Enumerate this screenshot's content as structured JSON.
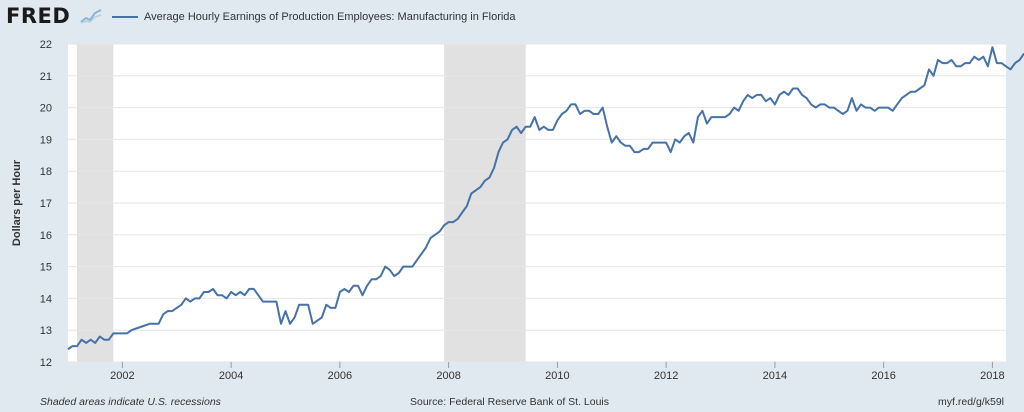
{
  "header": {
    "logo_text": "FRED",
    "logo_graph_icon": "line-graph-icon"
  },
  "chart_data": {
    "type": "line",
    "title": "",
    "xlabel": "",
    "ylabel": "Dollars per Hour",
    "xlim": [
      "2001-01",
      "2018-04"
    ],
    "ylim": [
      12,
      22
    ],
    "y_ticks": [
      12,
      13,
      14,
      15,
      16,
      17,
      18,
      19,
      20,
      21,
      22
    ],
    "x_ticks": [
      "2002",
      "2004",
      "2006",
      "2008",
      "2010",
      "2012",
      "2014",
      "2016",
      "2018"
    ],
    "grid": true,
    "legend": "top-left",
    "colors": {
      "line": "#4572a7",
      "recession": "#e1e1e1",
      "background": "#e1e9f0",
      "plot": "#ffffff"
    },
    "recessions": [
      {
        "start": "2001-03",
        "end": "2001-11"
      },
      {
        "start": "2007-12",
        "end": "2009-06"
      }
    ],
    "series": [
      {
        "name": "Average Hourly Earnings of Production Employees: Manufacturing in Florida",
        "points": [
          [
            "2001-01",
            12.4
          ],
          [
            "2001-02",
            12.5
          ],
          [
            "2001-03",
            12.5
          ],
          [
            "2001-04",
            12.7
          ],
          [
            "2001-05",
            12.6
          ],
          [
            "2001-06",
            12.7
          ],
          [
            "2001-07",
            12.6
          ],
          [
            "2001-08",
            12.8
          ],
          [
            "2001-09",
            12.7
          ],
          [
            "2001-10",
            12.7
          ],
          [
            "2001-11",
            12.9
          ],
          [
            "2001-12",
            12.9
          ],
          [
            "2002-02",
            12.9
          ],
          [
            "2002-03",
            13.0
          ],
          [
            "2002-05",
            13.1
          ],
          [
            "2002-07",
            13.2
          ],
          [
            "2002-09",
            13.2
          ],
          [
            "2002-10",
            13.5
          ],
          [
            "2002-11",
            13.6
          ],
          [
            "2002-12",
            13.6
          ],
          [
            "2003-02",
            13.8
          ],
          [
            "2003-03",
            14.0
          ],
          [
            "2003-04",
            13.9
          ],
          [
            "2003-05",
            14.0
          ],
          [
            "2003-06",
            14.0
          ],
          [
            "2003-07",
            14.2
          ],
          [
            "2003-08",
            14.2
          ],
          [
            "2003-09",
            14.3
          ],
          [
            "2003-10",
            14.1
          ],
          [
            "2003-11",
            14.1
          ],
          [
            "2003-12",
            14.0
          ],
          [
            "2004-01",
            14.2
          ],
          [
            "2004-02",
            14.1
          ],
          [
            "2004-03",
            14.2
          ],
          [
            "2004-04",
            14.1
          ],
          [
            "2004-05",
            14.3
          ],
          [
            "2004-06",
            14.3
          ],
          [
            "2004-07",
            14.1
          ],
          [
            "2004-08",
            13.9
          ],
          [
            "2004-09",
            13.9
          ],
          [
            "2004-10",
            13.9
          ],
          [
            "2004-11",
            13.9
          ],
          [
            "2004-12",
            13.2
          ],
          [
            "2005-01",
            13.6
          ],
          [
            "2005-02",
            13.2
          ],
          [
            "2005-03",
            13.4
          ],
          [
            "2005-04",
            13.8
          ],
          [
            "2005-05",
            13.8
          ],
          [
            "2005-06",
            13.8
          ],
          [
            "2005-07",
            13.2
          ],
          [
            "2005-08",
            13.3
          ],
          [
            "2005-09",
            13.4
          ],
          [
            "2005-10",
            13.8
          ],
          [
            "2005-11",
            13.7
          ],
          [
            "2005-12",
            13.7
          ],
          [
            "2006-01",
            14.2
          ],
          [
            "2006-02",
            14.3
          ],
          [
            "2006-03",
            14.2
          ],
          [
            "2006-04",
            14.4
          ],
          [
            "2006-05",
            14.4
          ],
          [
            "2006-06",
            14.1
          ],
          [
            "2006-07",
            14.4
          ],
          [
            "2006-08",
            14.6
          ],
          [
            "2006-09",
            14.6
          ],
          [
            "2006-10",
            14.7
          ],
          [
            "2006-11",
            15.0
          ],
          [
            "2006-12",
            14.9
          ],
          [
            "2007-01",
            14.7
          ],
          [
            "2007-02",
            14.8
          ],
          [
            "2007-03",
            15.0
          ],
          [
            "2007-04",
            15.0
          ],
          [
            "2007-05",
            15.0
          ],
          [
            "2007-06",
            15.2
          ],
          [
            "2007-07",
            15.4
          ],
          [
            "2007-08",
            15.6
          ],
          [
            "2007-09",
            15.9
          ],
          [
            "2007-10",
            16.0
          ],
          [
            "2007-11",
            16.1
          ],
          [
            "2007-12",
            16.3
          ],
          [
            "2008-01",
            16.4
          ],
          [
            "2008-02",
            16.4
          ],
          [
            "2008-03",
            16.5
          ],
          [
            "2008-04",
            16.7
          ],
          [
            "2008-05",
            16.9
          ],
          [
            "2008-06",
            17.3
          ],
          [
            "2008-07",
            17.4
          ],
          [
            "2008-08",
            17.5
          ],
          [
            "2008-09",
            17.7
          ],
          [
            "2008-10",
            17.8
          ],
          [
            "2008-11",
            18.1
          ],
          [
            "2008-12",
            18.6
          ],
          [
            "2009-01",
            18.9
          ],
          [
            "2009-02",
            19.0
          ],
          [
            "2009-03",
            19.3
          ],
          [
            "2009-04",
            19.4
          ],
          [
            "2009-05",
            19.2
          ],
          [
            "2009-06",
            19.4
          ],
          [
            "2009-07",
            19.4
          ],
          [
            "2009-08",
            19.7
          ],
          [
            "2009-09",
            19.3
          ],
          [
            "2009-10",
            19.4
          ],
          [
            "2009-11",
            19.3
          ],
          [
            "2009-12",
            19.3
          ],
          [
            "2010-01",
            19.6
          ],
          [
            "2010-02",
            19.8
          ],
          [
            "2010-03",
            19.9
          ],
          [
            "2010-04",
            20.1
          ],
          [
            "2010-05",
            20.1
          ],
          [
            "2010-06",
            19.8
          ],
          [
            "2010-07",
            19.9
          ],
          [
            "2010-08",
            19.9
          ],
          [
            "2010-09",
            19.8
          ],
          [
            "2010-10",
            19.8
          ],
          [
            "2010-11",
            20.0
          ],
          [
            "2010-12",
            19.4
          ],
          [
            "2011-01",
            18.9
          ],
          [
            "2011-02",
            19.1
          ],
          [
            "2011-03",
            18.9
          ],
          [
            "2011-04",
            18.8
          ],
          [
            "2011-05",
            18.8
          ],
          [
            "2011-06",
            18.6
          ],
          [
            "2011-07",
            18.6
          ],
          [
            "2011-08",
            18.7
          ],
          [
            "2011-09",
            18.7
          ],
          [
            "2011-10",
            18.9
          ],
          [
            "2011-11",
            18.9
          ],
          [
            "2011-12",
            18.9
          ],
          [
            "2012-01",
            18.9
          ],
          [
            "2012-02",
            18.6
          ],
          [
            "2012-03",
            19.0
          ],
          [
            "2012-04",
            18.9
          ],
          [
            "2012-05",
            19.1
          ],
          [
            "2012-06",
            19.2
          ],
          [
            "2012-07",
            18.9
          ],
          [
            "2012-08",
            19.7
          ],
          [
            "2012-09",
            19.9
          ],
          [
            "2012-10",
            19.5
          ],
          [
            "2012-11",
            19.7
          ],
          [
            "2012-12",
            19.7
          ],
          [
            "2013-01",
            19.7
          ],
          [
            "2013-02",
            19.7
          ],
          [
            "2013-03",
            19.8
          ],
          [
            "2013-04",
            20.0
          ],
          [
            "2013-05",
            19.9
          ],
          [
            "2013-06",
            20.2
          ],
          [
            "2013-07",
            20.4
          ],
          [
            "2013-08",
            20.3
          ],
          [
            "2013-09",
            20.4
          ],
          [
            "2013-10",
            20.4
          ],
          [
            "2013-11",
            20.2
          ],
          [
            "2013-12",
            20.3
          ],
          [
            "2014-01",
            20.1
          ],
          [
            "2014-02",
            20.4
          ],
          [
            "2014-03",
            20.5
          ],
          [
            "2014-04",
            20.4
          ],
          [
            "2014-05",
            20.6
          ],
          [
            "2014-06",
            20.6
          ],
          [
            "2014-07",
            20.4
          ],
          [
            "2014-08",
            20.3
          ],
          [
            "2014-09",
            20.1
          ],
          [
            "2014-10",
            20.0
          ],
          [
            "2014-11",
            20.1
          ],
          [
            "2014-12",
            20.1
          ],
          [
            "2015-01",
            20.0
          ],
          [
            "2015-02",
            20.0
          ],
          [
            "2015-03",
            19.9
          ],
          [
            "2015-04",
            19.8
          ],
          [
            "2015-05",
            19.9
          ],
          [
            "2015-06",
            20.3
          ],
          [
            "2015-07",
            19.9
          ],
          [
            "2015-08",
            20.1
          ],
          [
            "2015-09",
            20.0
          ],
          [
            "2015-10",
            20.0
          ],
          [
            "2015-11",
            19.9
          ],
          [
            "2015-12",
            20.0
          ],
          [
            "2016-01",
            20.0
          ],
          [
            "2016-02",
            20.0
          ],
          [
            "2016-03",
            19.9
          ],
          [
            "2016-04",
            20.1
          ],
          [
            "2016-05",
            20.3
          ],
          [
            "2016-06",
            20.4
          ],
          [
            "2016-07",
            20.5
          ],
          [
            "2016-08",
            20.5
          ],
          [
            "2016-09",
            20.6
          ],
          [
            "2016-10",
            20.7
          ],
          [
            "2016-11",
            21.2
          ],
          [
            "2016-12",
            21.0
          ],
          [
            "2017-01",
            21.5
          ],
          [
            "2017-02",
            21.4
          ],
          [
            "2017-03",
            21.4
          ],
          [
            "2017-04",
            21.5
          ],
          [
            "2017-05",
            21.3
          ],
          [
            "2017-06",
            21.3
          ],
          [
            "2017-07",
            21.4
          ],
          [
            "2017-08",
            21.4
          ],
          [
            "2017-09",
            21.6
          ],
          [
            "2017-10",
            21.5
          ],
          [
            "2017-11",
            21.6
          ],
          [
            "2017-12",
            21.3
          ],
          [
            "2018-01",
            21.9
          ],
          [
            "2018-02",
            21.4
          ],
          [
            "2018-03",
            21.4
          ],
          [
            "2018-04",
            21.3
          ],
          [
            "2018-05",
            21.2
          ],
          [
            "2018-06",
            21.4
          ],
          [
            "2018-07",
            21.5
          ],
          [
            "2018-08",
            21.7
          ]
        ]
      }
    ]
  },
  "footer": {
    "note": "Shaded areas indicate U.S. recessions",
    "source": "Source: Federal Reserve Bank of St. Louis",
    "link": "myf.red/g/k59l"
  }
}
